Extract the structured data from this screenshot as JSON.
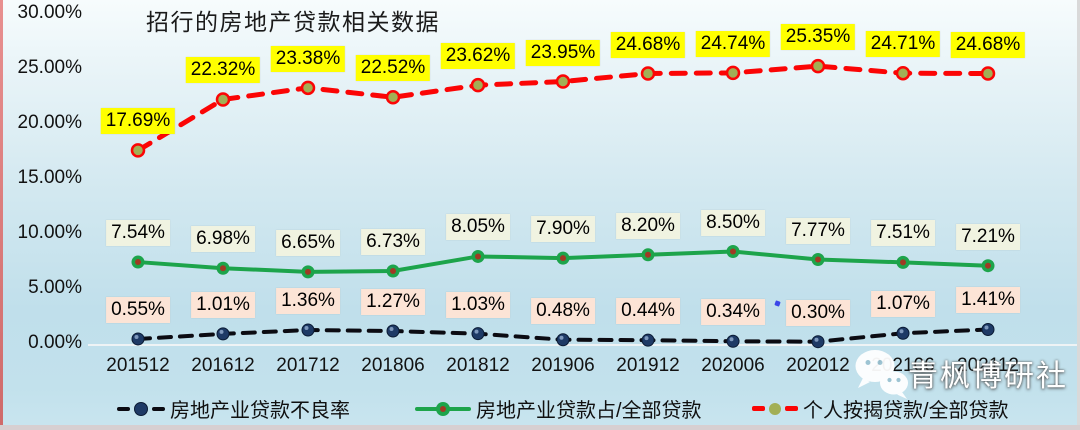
{
  "chart_data": {
    "type": "line",
    "title": "招行的房地产贷款相关数据",
    "categories": [
      "201512",
      "201612",
      "201712",
      "201806",
      "201812",
      "201906",
      "201912",
      "202006",
      "202012",
      "202106",
      "202112"
    ],
    "series": [
      {
        "name": "房地产业贷款不良率",
        "values": [
          0.55,
          1.01,
          1.36,
          1.27,
          1.03,
          0.48,
          0.44,
          0.34,
          0.3,
          1.07,
          1.41
        ],
        "line_color": "#0b0b12",
        "line_style": "dashed",
        "dash": "12 9",
        "line_width": 4,
        "marker": {
          "r": 6,
          "fill": "#1e3a66",
          "stroke": "#0b1b34",
          "stroke_width": 1,
          "inner": null,
          "highlight": "#7e98bc"
        },
        "label_bg": "#fce4d6"
      },
      {
        "name": "房地产业贷款占/全部贷款",
        "values": [
          7.54,
          6.98,
          6.65,
          6.73,
          8.05,
          7.9,
          8.2,
          8.5,
          7.77,
          7.51,
          7.21
        ],
        "line_color": "#1da44b",
        "line_style": "solid",
        "dash": null,
        "line_width": 4,
        "marker": {
          "r": 6.5,
          "fill": "#1da44b",
          "stroke": null,
          "stroke_width": 0,
          "inner": "#a03a24",
          "highlight": null
        },
        "label_bg": "#f0f3e1"
      },
      {
        "name": "个人按揭贷款/全部贷款",
        "values": [
          17.69,
          22.32,
          23.38,
          22.52,
          23.62,
          23.95,
          24.68,
          24.74,
          25.35,
          24.71,
          24.68
        ],
        "line_color": "#fb0505",
        "line_style": "dashed",
        "dash": "14 11",
        "line_width": 5,
        "marker": {
          "r": 6,
          "fill": "#a2af55",
          "stroke": "#fb0505",
          "stroke_width": 2.5,
          "inner": null,
          "highlight": null
        },
        "label_bg": "#ffff00"
      }
    ],
    "label_format": "percent_2dp",
    "y_axis": {
      "ticks": [
        "30.00%",
        "25.00%",
        "20.00%",
        "15.00%",
        "10.00%",
        "5.00%",
        "0.00%"
      ],
      "min": 0,
      "max": 30,
      "step": 5
    },
    "grid": false,
    "legend_position": "bottom"
  },
  "watermark": {
    "text": "青枫博研社",
    "icon": "wechat-icon"
  },
  "extras": {
    "stray_blue_mark_near_label": "0.34%"
  }
}
